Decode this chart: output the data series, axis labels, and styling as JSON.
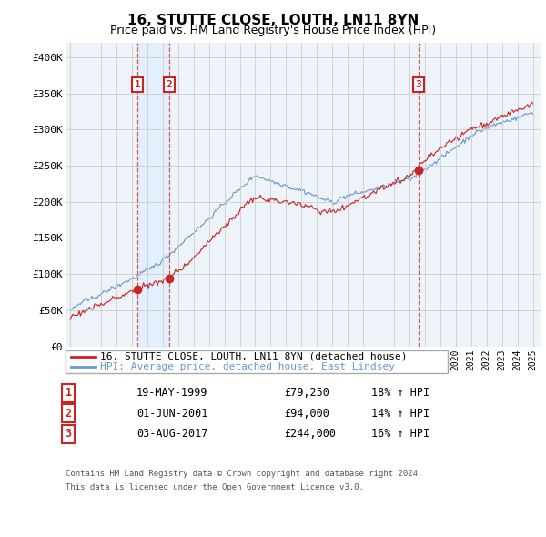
{
  "title": "16, STUTTE CLOSE, LOUTH, LN11 8YN",
  "subtitle": "Price paid vs. HM Land Registry's House Price Index (HPI)",
  "ylim": [
    0,
    420000
  ],
  "yticks": [
    0,
    50000,
    100000,
    150000,
    200000,
    250000,
    300000,
    350000,
    400000
  ],
  "ytick_labels": [
    "£0",
    "£50K",
    "£100K",
    "£150K",
    "£200K",
    "£250K",
    "£300K",
    "£350K",
    "£400K"
  ],
  "legend_line1": "16, STUTTE CLOSE, LOUTH, LN11 8YN (detached house)",
  "legend_line2": "HPI: Average price, detached house, East Lindsey",
  "transactions": [
    {
      "num": 1,
      "date": "19-MAY-1999",
      "price": "£79,250",
      "pct": "18% ↑ HPI",
      "year": 1999.38,
      "value": 79250
    },
    {
      "num": 2,
      "date": "01-JUN-2001",
      "price": "£94,000",
      "pct": "14% ↑ HPI",
      "year": 2001.42,
      "value": 94000
    },
    {
      "num": 3,
      "date": "03-AUG-2017",
      "price": "£244,000",
      "pct": "16% ↑ HPI",
      "year": 2017.59,
      "value": 244000
    }
  ],
  "footnote1": "Contains HM Land Registry data © Crown copyright and database right 2024.",
  "footnote2": "This data is licensed under the Open Government Licence v3.0.",
  "hpi_color": "#6699cc",
  "price_color": "#cc2222",
  "vline_color": "#dd4444",
  "grid_color": "#cccccc",
  "plot_bg": "#eef3fa",
  "fig_bg": "#ffffff",
  "box_color": "#cc2222",
  "shade_color": "#ddeeff"
}
